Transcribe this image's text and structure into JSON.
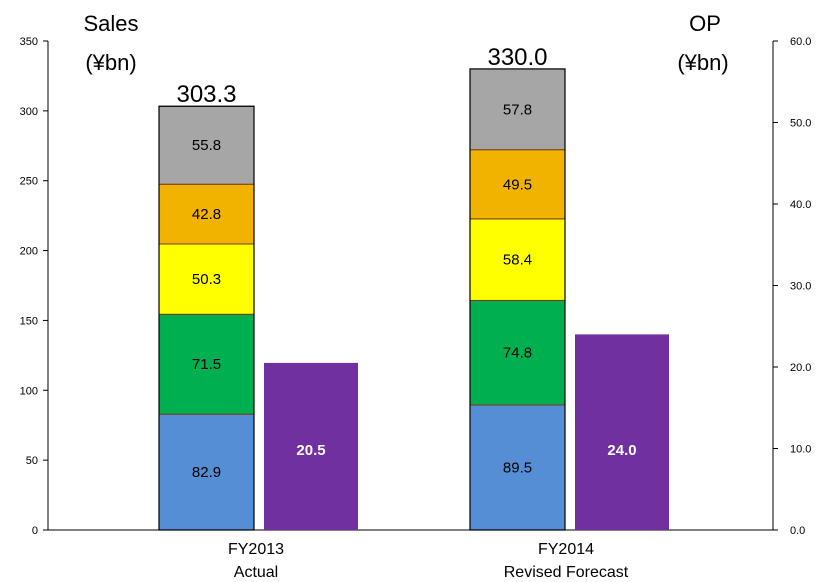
{
  "chart_data": {
    "type": "bar",
    "categories": [
      {
        "line1": "FY2013",
        "line2": "Actual"
      },
      {
        "line1": "FY2014",
        "line2": "Revised Forecast"
      }
    ],
    "left_axis": {
      "title_line1": "Sales",
      "title_line2": "(¥bn)",
      "ylim": [
        0,
        350
      ],
      "ticks": [
        "0",
        "50",
        "100",
        "150",
        "200",
        "250",
        "300",
        "350"
      ],
      "tick_values": [
        0,
        50,
        100,
        150,
        200,
        250,
        300,
        350
      ]
    },
    "right_axis": {
      "title_line1": "OP",
      "title_line2": "(¥bn)",
      "ylim": [
        0,
        60
      ],
      "ticks": [
        "0.0",
        "10.0",
        "20.0",
        "30.0",
        "40.0",
        "50.0",
        "60.0"
      ],
      "tick_values": [
        0,
        10,
        20,
        30,
        40,
        50,
        60
      ]
    },
    "sales_stacks": [
      {
        "total": 303.3,
        "total_label": "303.3",
        "segments": [
          {
            "value": 82.9,
            "label": "82.9",
            "color": "#558ED5"
          },
          {
            "value": 71.5,
            "label": "71.5",
            "color": "#00B050"
          },
          {
            "value": 50.3,
            "label": "50.3",
            "color": "#FFFF00"
          },
          {
            "value": 42.8,
            "label": "42.8",
            "color": "#F2B200"
          },
          {
            "value": 55.8,
            "label": "55.8",
            "color": "#A6A6A6"
          }
        ]
      },
      {
        "total": 330.0,
        "total_label": "330.0",
        "segments": [
          {
            "value": 89.5,
            "label": "89.5",
            "color": "#558ED5"
          },
          {
            "value": 74.8,
            "label": "74.8",
            "color": "#00B050"
          },
          {
            "value": 58.4,
            "label": "58.4",
            "color": "#FFFF00"
          },
          {
            "value": 49.5,
            "label": "49.5",
            "color": "#F2B200"
          },
          {
            "value": 57.8,
            "label": "57.8",
            "color": "#A6A6A6"
          }
        ]
      }
    ],
    "op_bars": [
      {
        "value": 20.5,
        "label": "20.5",
        "color": "#7030A0"
      },
      {
        "value": 24.0,
        "label": "24.0",
        "color": "#7030A0"
      }
    ],
    "grid": false,
    "legend": "none"
  }
}
